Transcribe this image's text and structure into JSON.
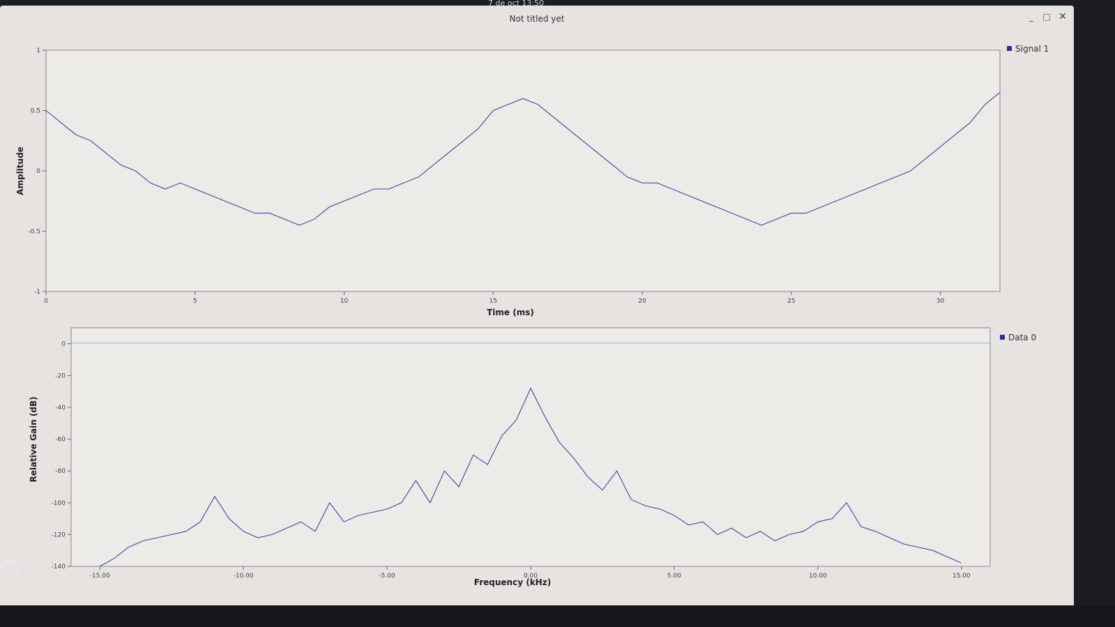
{
  "window": {
    "title": "Not titled yet",
    "controls": {
      "minimize": "_",
      "maximize": "□",
      "close": "✕"
    },
    "topbar_clock": "7 de oct 13:50"
  },
  "colors": {
    "curve": "#3e45a8",
    "legend_marker": "#2530a0",
    "reference_line": "#8fb4d6",
    "plot_background": "#edebe8"
  },
  "chart_data": [
    {
      "type": "line",
      "xlabel": "Time (ms)",
      "ylabel": "Amplitude",
      "xlim": [
        0,
        32
      ],
      "ylim": [
        -1,
        1
      ],
      "xticks": [
        "0",
        "5",
        "10",
        "15",
        "20",
        "25",
        "30"
      ],
      "yticks": [
        "1",
        "0.5",
        "0",
        "-0.5",
        "-1"
      ],
      "legend": {
        "position": "top-right",
        "entries": [
          "Signal 1"
        ]
      },
      "series": [
        {
          "name": "Signal 1",
          "x": [
            0,
            0.5,
            1,
            1.5,
            2,
            2.5,
            3,
            3.5,
            4,
            4.5,
            5,
            5.5,
            6,
            6.5,
            7,
            7.5,
            8,
            8.5,
            9,
            9.5,
            10,
            10.5,
            11,
            11.5,
            12,
            12.5,
            13,
            13.5,
            14,
            14.5,
            15,
            15.5,
            16,
            16.5,
            17,
            17.5,
            18,
            18.5,
            19,
            19.5,
            20,
            20.5,
            21,
            21.5,
            22,
            22.5,
            23,
            23.5,
            24,
            24.5,
            25,
            25.5,
            26,
            26.5,
            27,
            27.5,
            28,
            28.5,
            29,
            29.5,
            30,
            30.5,
            31,
            31.5,
            32
          ],
          "y": [
            0.5,
            0.4,
            0.3,
            0.25,
            0.15,
            0.05,
            0,
            -0.1,
            -0.15,
            -0.1,
            -0.15,
            -0.2,
            -0.25,
            -0.3,
            -0.35,
            -0.35,
            -0.4,
            -0.45,
            -0.4,
            -0.3,
            -0.25,
            -0.2,
            -0.15,
            -0.15,
            -0.1,
            -0.05,
            0.05,
            0.15,
            0.25,
            0.35,
            0.5,
            0.55,
            0.6,
            0.55,
            0.45,
            0.35,
            0.25,
            0.15,
            0.05,
            -0.05,
            -0.1,
            -0.1,
            -0.15,
            -0.2,
            -0.25,
            -0.3,
            -0.35,
            -0.4,
            -0.45,
            -0.4,
            -0.35,
            -0.35,
            -0.3,
            -0.25,
            -0.2,
            -0.15,
            -0.1,
            -0.05,
            0,
            0.1,
            0.2,
            0.3,
            0.4,
            0.55,
            0.65
          ]
        }
      ]
    },
    {
      "type": "line",
      "xlabel": "Frequency (kHz)",
      "ylabel": "Relative Gain (dB)",
      "xlim": [
        -16,
        16
      ],
      "ylim": [
        -140,
        10
      ],
      "xticks": [
        "-15.00",
        "-10.00",
        "-5.00",
        "0.00",
        "5.00",
        "10.00",
        "15.00"
      ],
      "yticks": [
        "0",
        "-20",
        "-40",
        "-60",
        "-80",
        "-100",
        "-120",
        "-140"
      ],
      "legend": {
        "position": "top-right",
        "entries": [
          "Data 0"
        ]
      },
      "series": [
        {
          "name": "Data 0",
          "x": [
            -15,
            -14.5,
            -14,
            -13.5,
            -13,
            -12.5,
            -12,
            -11.5,
            -11,
            -10.5,
            -10,
            -9.5,
            -9,
            -8.5,
            -8,
            -7.5,
            -7,
            -6.5,
            -6,
            -5.5,
            -5,
            -4.5,
            -4,
            -3.5,
            -3,
            -2.5,
            -2,
            -1.5,
            -1,
            -0.5,
            0,
            0.5,
            1,
            1.5,
            2,
            2.5,
            3,
            3.5,
            4,
            4.5,
            5,
            5.5,
            6,
            6.5,
            7,
            7.5,
            8,
            8.5,
            9,
            9.5,
            10,
            10.5,
            11,
            11.5,
            12,
            12.5,
            13,
            13.5,
            14,
            14.5,
            15
          ],
          "y": [
            -140,
            -135,
            -128,
            -124,
            -122,
            -120,
            -118,
            -112,
            -96,
            -110,
            -118,
            -122,
            -120,
            -116,
            -112,
            -118,
            -100,
            -112,
            -108,
            -106,
            -104,
            -100,
            -86,
            -100,
            -80,
            -90,
            -70,
            -76,
            -58,
            -48,
            -28,
            -46,
            -62,
            -72,
            -84,
            -92,
            -80,
            -98,
            -102,
            -104,
            -108,
            -114,
            -112,
            -120,
            -116,
            -122,
            -118,
            -124,
            -120,
            -118,
            -112,
            -110,
            -100,
            -115,
            -118,
            -122,
            -126,
            -128,
            -130,
            -134,
            -138
          ]
        }
      ]
    }
  ]
}
